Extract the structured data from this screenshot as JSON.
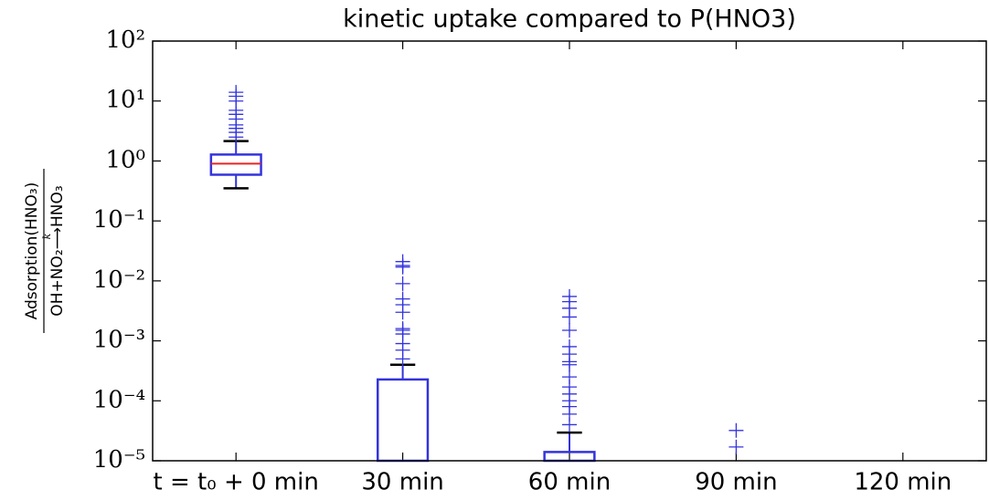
{
  "chart_data": {
    "type": "box",
    "title": "kinetic uptake compared to P(HNO3)",
    "ylabel_numerator": "Adsorption(HNO₃)",
    "ylabel_denominator": "OH+NO₂⟶HNO₃",
    "ylabel_arrow_label": "k",
    "categories": [
      "t = t₀ + 0 min",
      "30 min",
      "60 min",
      "90 min",
      "120 min"
    ],
    "log_y": true,
    "ylim": [
      1e-05,
      100
    ],
    "yticks": [
      {
        "value": 1e-05,
        "label": "10⁻⁵"
      },
      {
        "value": 0.0001,
        "label": "10⁻⁴"
      },
      {
        "value": 0.001,
        "label": "10⁻³"
      },
      {
        "value": 0.01,
        "label": "10⁻²"
      },
      {
        "value": 0.1,
        "label": "10⁻¹"
      },
      {
        "value": 1,
        "label": "10⁰"
      },
      {
        "value": 10,
        "label": "10¹"
      },
      {
        "value": 100,
        "label": "10²"
      }
    ],
    "box_color": "#3333dd",
    "median_color": "#ee2222",
    "cap_color": "#000000",
    "boxes": [
      {
        "q1": 0.59,
        "median": 0.9,
        "q3": 1.28,
        "whislo": 0.35,
        "whishi": 2.15,
        "fliers": [
          14,
          12,
          10,
          7,
          6,
          5,
          4,
          3.5,
          3,
          2.5
        ]
      },
      {
        "q1": null,
        "median": null,
        "q3": 0.000227,
        "whislo": null,
        "whishi": 0.0004,
        "fliers": [
          0.021,
          0.018,
          0.017,
          0.009,
          0.005,
          0.004,
          0.003,
          0.0016,
          0.0015,
          0.0013,
          0.0009,
          0.0007,
          0.0005
        ]
      },
      {
        "q1": null,
        "median": null,
        "q3": 1.4e-05,
        "whislo": null,
        "whishi": 2.95e-05,
        "fliers": [
          0.0055,
          0.0045,
          0.0035,
          0.0025,
          0.0015,
          0.0008,
          0.0006,
          0.00045,
          0.0004,
          0.00025,
          0.00017,
          0.00013,
          0.0001,
          8e-05,
          6e-05,
          4e-05
        ]
      },
      {
        "q1": null,
        "median": null,
        "q3": null,
        "whislo": null,
        "whishi": null,
        "fliers": [
          3.2e-05,
          1.7e-05
        ]
      },
      {
        "q1": null,
        "median": null,
        "q3": null,
        "whislo": null,
        "whishi": null,
        "fliers": []
      }
    ]
  }
}
